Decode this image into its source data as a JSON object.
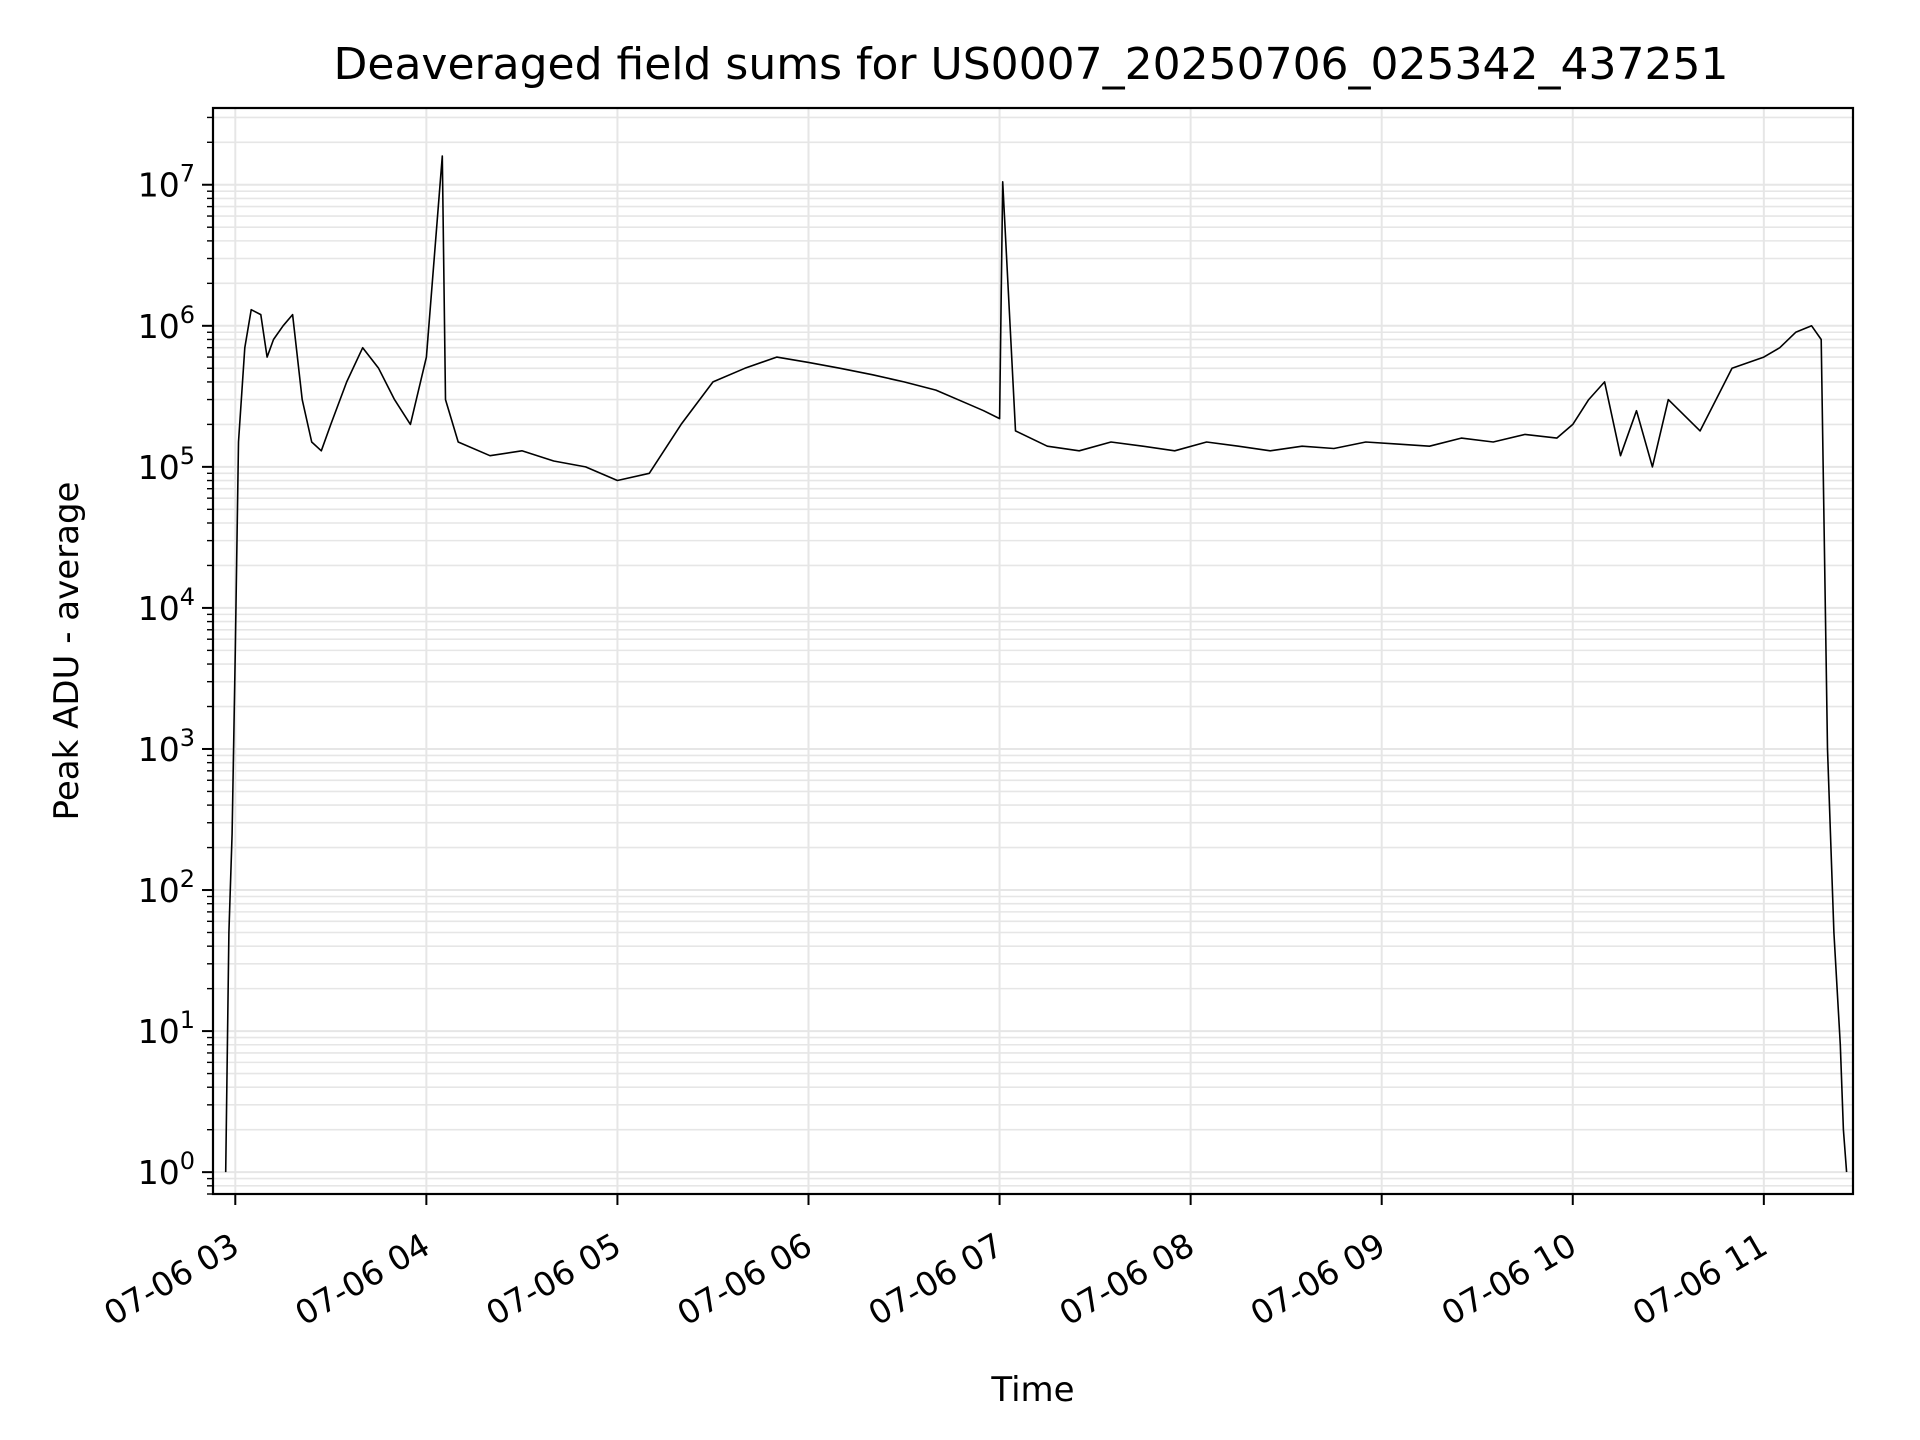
{
  "chart_data": {
    "type": "line",
    "title": "Deaveraged field sums for US0007_20250706_025342_437251",
    "xlabel": "Time",
    "ylabel": "Peak ADU - average",
    "x_scale": "time",
    "y_scale": "log",
    "xlim": [
      "2025-07-06 02:53",
      "2025-07-06 11:28"
    ],
    "ylim": [
      0.7,
      35000000
    ],
    "grid": true,
    "legend": "none",
    "x_ticks": [
      "07-06 03",
      "07-06 04",
      "07-06 05",
      "07-06 06",
      "07-06 07",
      "07-06 08",
      "07-06 09",
      "07-06 10",
      "07-06 11"
    ],
    "y_ticks": [
      1,
      10,
      100,
      1000,
      10000,
      100000,
      1000000,
      10000000
    ],
    "y_tick_labels": [
      {
        "base": "10",
        "exp": "0"
      },
      {
        "base": "10",
        "exp": "1"
      },
      {
        "base": "10",
        "exp": "2"
      },
      {
        "base": "10",
        "exp": "3"
      },
      {
        "base": "10",
        "exp": "4"
      },
      {
        "base": "10",
        "exp": "5"
      },
      {
        "base": "10",
        "exp": "6"
      },
      {
        "base": "10",
        "exp": "7"
      }
    ],
    "series": [
      {
        "color": "#000000",
        "x": [
          "02:57",
          "02:58",
          "02:59",
          "03:00",
          "03:01",
          "03:03",
          "03:05",
          "03:08",
          "03:10",
          "03:12",
          "03:15",
          "03:18",
          "03:21",
          "03:24",
          "03:27",
          "03:30",
          "03:35",
          "03:40",
          "03:45",
          "03:50",
          "03:55",
          "04:00",
          "04:05",
          "04:06",
          "04:10",
          "04:20",
          "04:30",
          "04:40",
          "04:50",
          "05:00",
          "05:10",
          "05:20",
          "05:30",
          "05:40",
          "05:50",
          "06:00",
          "06:10",
          "06:20",
          "06:30",
          "06:40",
          "06:50",
          "06:55",
          "07:00",
          "07:01",
          "07:05",
          "07:15",
          "07:25",
          "07:35",
          "07:45",
          "07:55",
          "08:05",
          "08:15",
          "08:25",
          "08:35",
          "08:45",
          "08:55",
          "09:05",
          "09:15",
          "09:25",
          "09:35",
          "09:45",
          "09:55",
          "10:00",
          "10:05",
          "10:10",
          "10:15",
          "10:20",
          "10:25",
          "10:30",
          "10:40",
          "10:50",
          "11:00",
          "11:05",
          "11:10",
          "11:15",
          "11:18",
          "11:20",
          "11:22",
          "11:24",
          "11:25",
          "11:26"
        ],
        "y": [
          1,
          50,
          250,
          5000,
          150000,
          700000,
          1300000,
          1200000,
          600000,
          800000,
          1000000,
          1200000,
          300000,
          150000,
          130000,
          200000,
          400000,
          700000,
          500000,
          300000,
          200000,
          600000,
          16000000,
          300000,
          150000,
          120000,
          130000,
          110000,
          100000,
          80000,
          90000,
          200000,
          400000,
          500000,
          600000,
          550000,
          500000,
          450000,
          400000,
          350000,
          280000,
          250000,
          220000,
          10500000,
          180000,
          140000,
          130000,
          150000,
          140000,
          130000,
          150000,
          140000,
          130000,
          140000,
          135000,
          150000,
          145000,
          140000,
          160000,
          150000,
          170000,
          160000,
          200000,
          300000,
          400000,
          120000,
          250000,
          100000,
          300000,
          180000,
          500000,
          600000,
          700000,
          900000,
          1000000,
          800000,
          1000,
          50,
          8,
          2,
          1
        ]
      }
    ]
  }
}
